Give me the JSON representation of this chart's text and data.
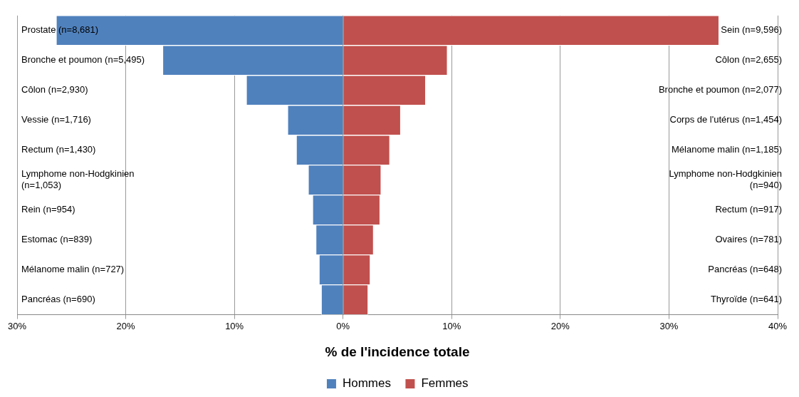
{
  "chart_data": {
    "type": "bar",
    "orientation": "horizontal",
    "xlabel": "% de l'incidence totale",
    "categories": [
      "Prostate (n=8,681)",
      "Bronche et poumon (n=5,495)",
      "Côlon (n=2,930)",
      "Vessie (n=1,716)",
      "Rectum (n=1,430)",
      "Lymphome non-Hodgkinien (n=1,053)",
      "Rein (n=954)",
      "Estomac (n=839)",
      "Mélanome malin (n=727)",
      "Pancréas (n=690)"
    ],
    "y2_categories": [
      "Sein (n=9,596)",
      "Côlon (n=2,655)",
      "Bronche et poumon (n=2,077)",
      "Corps de l'utérus (n=1,454)",
      "Mélanome malin (n=1,185)",
      "Lymphome non-Hodgkinien (n=940)",
      "Rectum (n=917)",
      "Ovaires (n=781)",
      "Pancréas (n=648)",
      "Thyroïde (n=641)"
    ],
    "series": [
      {
        "name": "Hommes",
        "color": "#4f81bd",
        "values": [
          -26.4,
          -16.6,
          -8.9,
          -5.1,
          -4.3,
          -3.2,
          -2.8,
          -2.5,
          -2.2,
          -2.0
        ]
      },
      {
        "name": "Femmes",
        "color": "#c0504d",
        "values": [
          34.6,
          9.6,
          7.6,
          5.3,
          4.3,
          3.5,
          3.4,
          2.8,
          2.5,
          2.3
        ]
      }
    ],
    "xlim": [
      -30,
      40
    ],
    "xticks": [
      {
        "value": -30,
        "label": "30%"
      },
      {
        "value": -20,
        "label": "20%"
      },
      {
        "value": -10,
        "label": "10%"
      },
      {
        "value": 0,
        "label": "0%"
      },
      {
        "value": 10,
        "label": "10%"
      },
      {
        "value": 20,
        "label": "20%"
      },
      {
        "value": 30,
        "label": "30%"
      },
      {
        "value": 40,
        "label": "40%"
      }
    ],
    "stacked": true,
    "grid": "x",
    "legend": "bottom"
  }
}
